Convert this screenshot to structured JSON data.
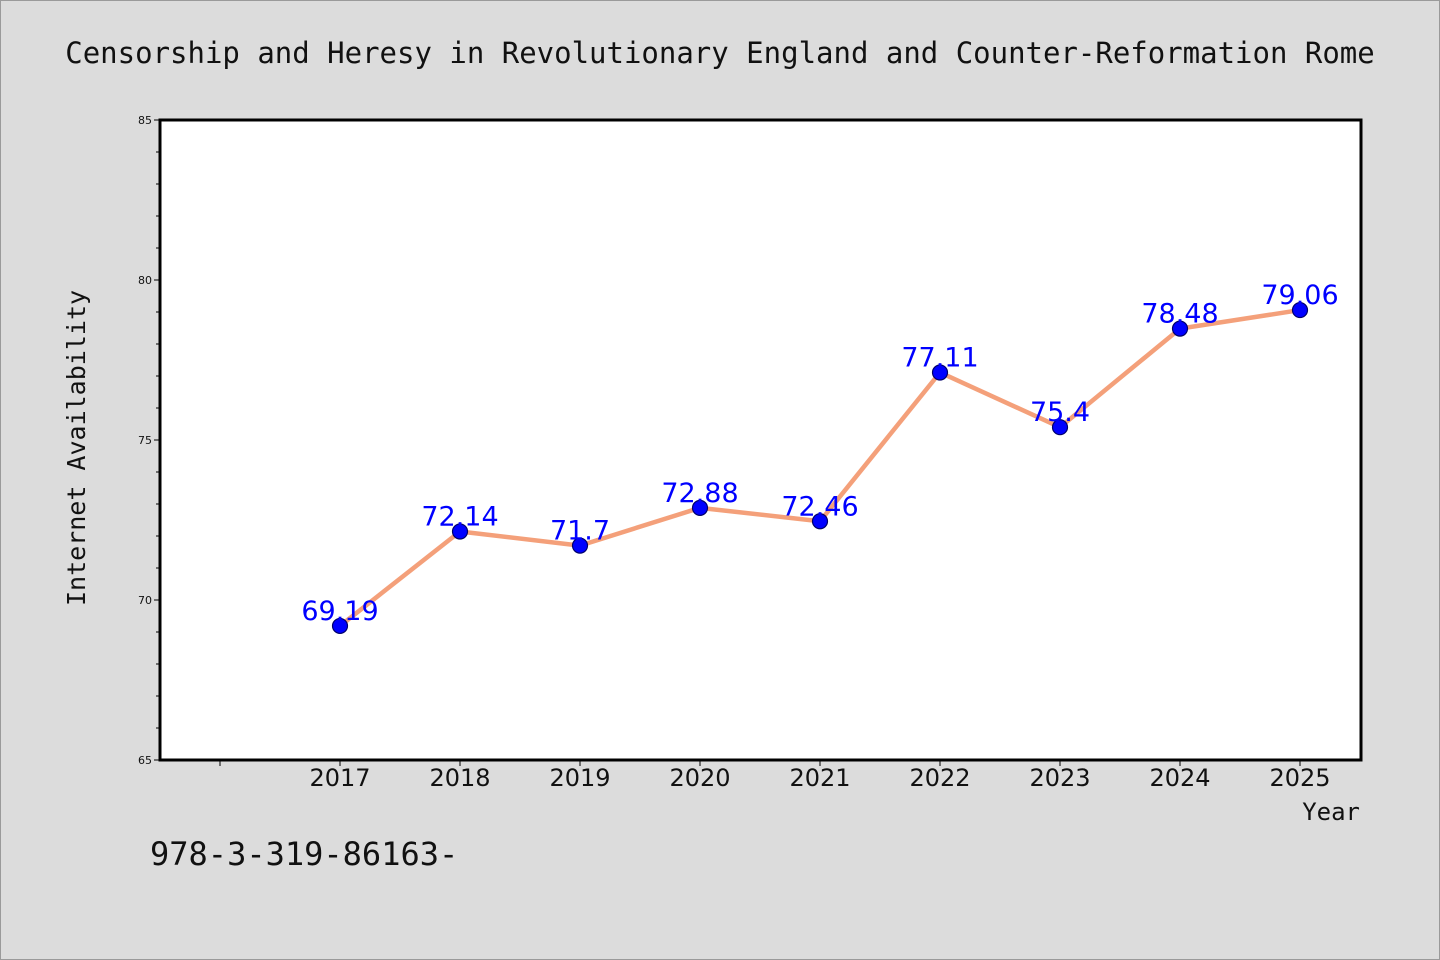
{
  "chart_data": {
    "type": "line",
    "title": "Censorship and Heresy in Revolutionary England and Counter-Reformation Rome",
    "xlabel": "Year",
    "ylabel": "Internet Availability",
    "categories": [
      "2017",
      "2018",
      "2019",
      "2020",
      "2021",
      "2022",
      "2023",
      "2024",
      "2025"
    ],
    "series": [
      {
        "values": [
          69.19,
          72.14,
          71.7,
          72.88,
          72.46,
          77.11,
          75.4,
          78.48,
          79.06
        ],
        "labels": [
          "69.19",
          "72.14",
          "71.7",
          "72.88",
          "72.46",
          "77.11",
          "75.4",
          "78.48",
          "79.06"
        ]
      }
    ],
    "ylim": [
      65,
      85
    ],
    "yticks": [
      "65",
      "70",
      "75",
      "80",
      "85"
    ],
    "grid": false,
    "legend": "none",
    "colors": {
      "line": "#f4a07a",
      "marker": "#0000ff",
      "marker_edge": "#00006a",
      "label": "#0000ff",
      "background": "#dcdcdc",
      "plot_background": "#ffffff"
    }
  },
  "footer_text": "978-3-319-86163-"
}
